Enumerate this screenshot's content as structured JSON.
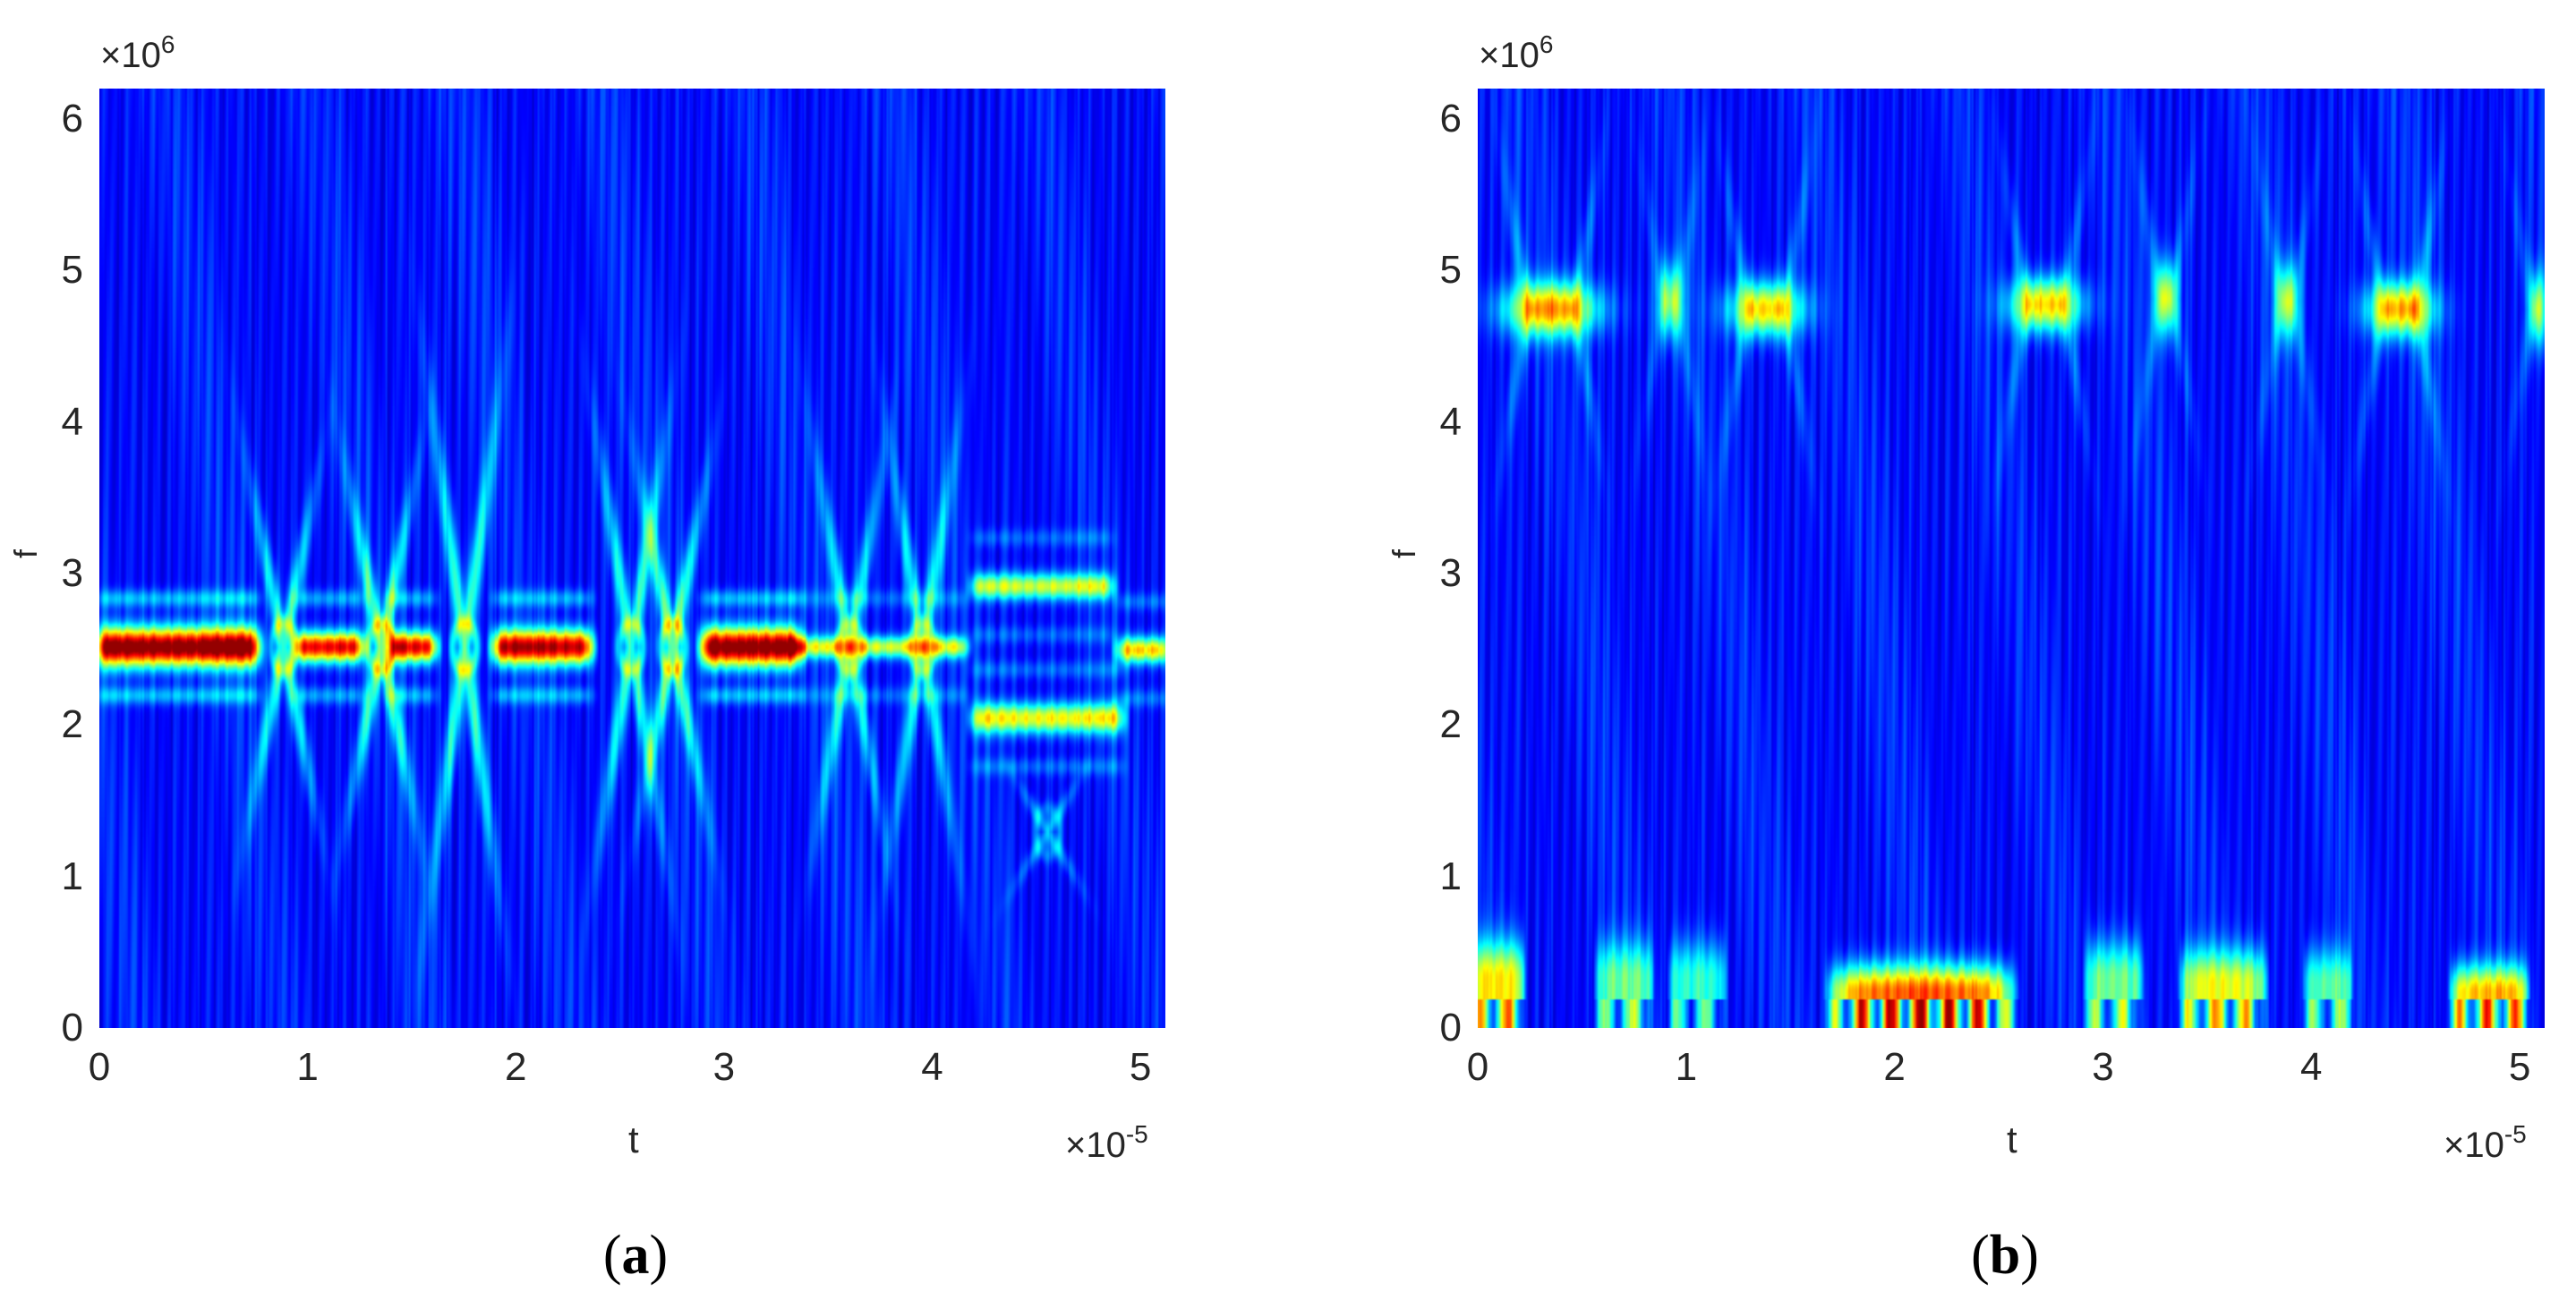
{
  "figure": {
    "panels": [
      {
        "id": "a",
        "caption_open": "(",
        "caption_letter": "a",
        "caption_close": ")",
        "y_exponent_base": "×10",
        "y_exponent_power": "6",
        "x_exponent_base": "×10",
        "x_exponent_power": "-5",
        "xlabel": "t",
        "ylabel": "f",
        "xticks": [
          "0",
          "1",
          "2",
          "3",
          "4",
          "5"
        ],
        "yticks": [
          "0",
          "1",
          "2",
          "3",
          "4",
          "5",
          "6"
        ]
      },
      {
        "id": "b",
        "caption_open": "(",
        "caption_letter": "b",
        "caption_close": ")",
        "y_exponent_base": "×10",
        "y_exponent_power": "6",
        "x_exponent_base": "×10",
        "x_exponent_power": "-5",
        "xlabel": "t",
        "ylabel": "f",
        "xticks": [
          "0",
          "1",
          "2",
          "3",
          "4",
          "5"
        ],
        "yticks": [
          "0",
          "1",
          "2",
          "3",
          "4",
          "5",
          "6"
        ]
      }
    ],
    "colormap": [
      "#00008f",
      "#0000ff",
      "#00ffff",
      "#ffff00",
      "#ff0000",
      "#800000"
    ]
  },
  "chart_data": [
    {
      "type": "heatmap",
      "title": "(a)",
      "xlabel": "t",
      "ylabel": "f",
      "x_scale": "×10^-5",
      "y_scale": "×10^6",
      "xlim": [
        0,
        5.12
      ],
      "ylim": [
        0,
        6.2
      ],
      "xticks": [
        0,
        1,
        2,
        3,
        4,
        5
      ],
      "yticks": [
        0,
        1,
        2,
        3,
        4,
        5,
        6
      ],
      "colormap": "jet",
      "description": "Time-frequency spectrogram with a dominant ridge at f≈2.5×10^6 across the full time range; high-intensity (red) segments at t≈0–0.75, 1.1–1.6, 1.9–2.3, 2.9–3.3 (×10^-5) with diamond-shaped interference lobes between them; after t≈4.2 the ridge splits into bands near f≈2.9 and f≈2.0 with a comb of fringes between.",
      "features": [
        {
          "kind": "band",
          "t0": 0.0,
          "t1": 0.75,
          "f": 2.52,
          "width": 0.18,
          "intensity": 1.0
        },
        {
          "kind": "band",
          "t0": 0.95,
          "t1": 1.25,
          "f": 2.52,
          "width": 0.14,
          "intensity": 0.85
        },
        {
          "kind": "band",
          "t0": 1.4,
          "t1": 1.6,
          "f": 2.52,
          "width": 0.14,
          "intensity": 0.85
        },
        {
          "kind": "band",
          "t0": 1.9,
          "t1": 2.35,
          "f": 2.52,
          "width": 0.16,
          "intensity": 0.9
        },
        {
          "kind": "band",
          "t0": 2.9,
          "t1": 3.35,
          "f": 2.52,
          "width": 0.18,
          "intensity": 1.0
        },
        {
          "kind": "band",
          "t0": 3.35,
          "t1": 4.15,
          "f": 2.52,
          "width": 0.1,
          "intensity": 0.5
        },
        {
          "kind": "band",
          "t0": 4.2,
          "t1": 4.85,
          "f": 2.92,
          "width": 0.12,
          "intensity": 0.5
        },
        {
          "kind": "band",
          "t0": 4.2,
          "t1": 4.9,
          "f": 2.05,
          "width": 0.14,
          "intensity": 0.55
        },
        {
          "kind": "band",
          "t0": 4.9,
          "t1": 5.12,
          "f": 2.5,
          "width": 0.12,
          "intensity": 0.6
        },
        {
          "kind": "node",
          "t": 0.88,
          "f": 2.52,
          "spread": 0.9,
          "intensity": 0.55
        },
        {
          "kind": "node",
          "t": 1.35,
          "f": 2.52,
          "spread": 0.9,
          "intensity": 0.6
        },
        {
          "kind": "node",
          "t": 1.75,
          "f": 2.52,
          "spread": 1.3,
          "intensity": 0.6
        },
        {
          "kind": "node",
          "t": 2.55,
          "f": 2.52,
          "spread": 1.1,
          "intensity": 0.55
        },
        {
          "kind": "node",
          "t": 2.75,
          "f": 2.52,
          "spread": 0.9,
          "intensity": 0.6
        },
        {
          "kind": "node",
          "t": 3.6,
          "f": 2.52,
          "spread": 1.0,
          "intensity": 0.5
        },
        {
          "kind": "node",
          "t": 3.95,
          "f": 2.52,
          "spread": 1.1,
          "intensity": 0.5
        },
        {
          "kind": "node",
          "t": 4.55,
          "f": 1.3,
          "spread": 0.3,
          "intensity": 0.3
        }
      ]
    },
    {
      "type": "heatmap",
      "title": "(b)",
      "xlabel": "t",
      "ylabel": "f",
      "x_scale": "×10^-5",
      "y_scale": "×10^6",
      "xlim": [
        0,
        5.12
      ],
      "ylim": [
        0,
        6.2
      ],
      "xticks": [
        0,
        1,
        2,
        3,
        4,
        5
      ],
      "yticks": [
        0,
        1,
        2,
        3,
        4,
        5,
        6
      ],
      "colormap": "jet",
      "description": "Time-frequency spectrogram showing intermittent bursts near f≈4.75×10^6 and low-frequency components near f≈0–0.5×10^6; strongest (red) low-frequency burst cluster at t≈1.7–2.5 (×10^-5).",
      "features": [
        {
          "kind": "blob",
          "t": 0.35,
          "f": 4.75,
          "wt": 0.28,
          "wf": 0.22,
          "intensity": 0.65
        },
        {
          "kind": "blob",
          "t": 0.92,
          "f": 4.8,
          "wt": 0.08,
          "wf": 0.3,
          "intensity": 0.4
        },
        {
          "kind": "blob",
          "t": 1.38,
          "f": 4.75,
          "wt": 0.22,
          "wf": 0.22,
          "intensity": 0.6
        },
        {
          "kind": "blob",
          "t": 2.72,
          "f": 4.78,
          "wt": 0.22,
          "wf": 0.22,
          "intensity": 0.6
        },
        {
          "kind": "blob",
          "t": 3.3,
          "f": 4.82,
          "wt": 0.07,
          "wf": 0.3,
          "intensity": 0.45
        },
        {
          "kind": "blob",
          "t": 3.88,
          "f": 4.8,
          "wt": 0.07,
          "wf": 0.3,
          "intensity": 0.4
        },
        {
          "kind": "blob",
          "t": 4.42,
          "f": 4.75,
          "wt": 0.2,
          "wf": 0.22,
          "intensity": 0.62
        },
        {
          "kind": "blob",
          "t": 5.08,
          "f": 4.75,
          "wt": 0.05,
          "wf": 0.3,
          "intensity": 0.4
        },
        {
          "kind": "low",
          "t0": 0.0,
          "t1": 0.18,
          "fmax": 0.55,
          "intensity": 0.75
        },
        {
          "kind": "low",
          "t0": 0.6,
          "t1": 0.8,
          "fmax": 0.55,
          "intensity": 0.5
        },
        {
          "kind": "low",
          "t0": 0.95,
          "t1": 1.15,
          "fmax": 0.55,
          "intensity": 0.45
        },
        {
          "kind": "low",
          "t0": 1.7,
          "t1": 2.55,
          "fmax": 0.4,
          "intensity": 1.0
        },
        {
          "kind": "low",
          "t0": 2.95,
          "t1": 3.15,
          "fmax": 0.55,
          "intensity": 0.55
        },
        {
          "kind": "low",
          "t0": 3.4,
          "t1": 3.75,
          "fmax": 0.5,
          "intensity": 0.7
        },
        {
          "kind": "low",
          "t0": 4.0,
          "t1": 4.15,
          "fmax": 0.5,
          "intensity": 0.5
        },
        {
          "kind": "low",
          "t0": 4.7,
          "t1": 5.0,
          "fmax": 0.4,
          "intensity": 0.85
        }
      ]
    }
  ]
}
